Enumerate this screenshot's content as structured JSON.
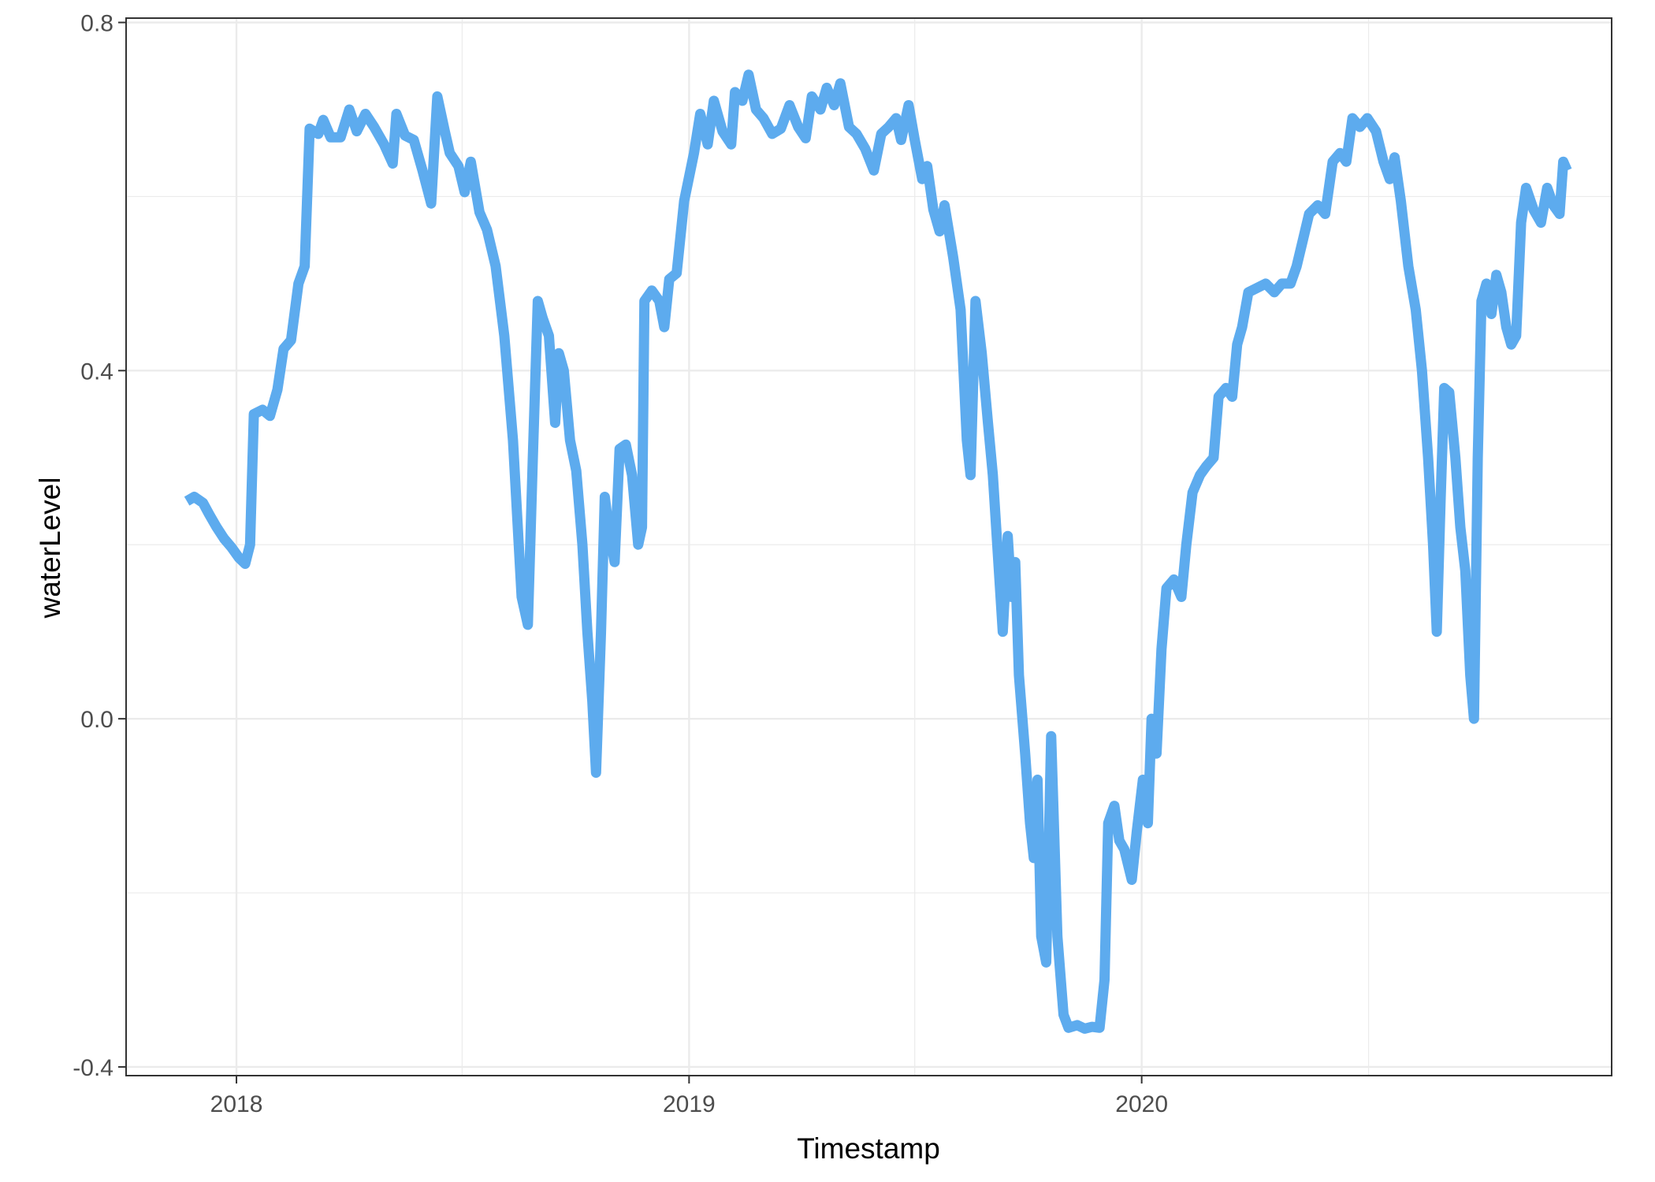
{
  "chart_data": {
    "type": "line",
    "title": "",
    "xlabel": "Timestamp",
    "ylabel": "waterLevel",
    "x_axis": {
      "type": "date",
      "range": [
        "2017-10-04",
        "2021-01-14"
      ],
      "ticks": [
        {
          "date": "2018-01-01",
          "label": "2018"
        },
        {
          "date": "2019-01-01",
          "label": "2019"
        },
        {
          "date": "2020-01-01",
          "label": "2020"
        }
      ],
      "minor_ticks": [
        "2018-07-02",
        "2019-07-02",
        "2020-07-02"
      ]
    },
    "y_axis": {
      "range": [
        -0.41,
        0.805
      ],
      "ticks": [
        {
          "value": -0.4,
          "label": "-0.4"
        },
        {
          "value": 0.0,
          "label": "0.0"
        },
        {
          "value": 0.4,
          "label": "0.4"
        },
        {
          "value": 0.8,
          "label": "0.8"
        }
      ],
      "minor_ticks": [
        -0.2,
        0.2,
        0.6
      ]
    },
    "grid": true,
    "legend": "none",
    "series": [
      {
        "color": "#5dabee",
        "points": [
          [
            "2017-11-22",
            0.25
          ],
          [
            "2017-11-28",
            0.255
          ],
          [
            "2017-12-05",
            0.248
          ],
          [
            "2017-12-10",
            0.235
          ],
          [
            "2017-12-16",
            0.22
          ],
          [
            "2017-12-22",
            0.207
          ],
          [
            "2017-12-28",
            0.197
          ],
          [
            "2018-01-03",
            0.185
          ],
          [
            "2018-01-08",
            0.178
          ],
          [
            "2018-01-12",
            0.2
          ],
          [
            "2018-01-15",
            0.35
          ],
          [
            "2018-01-22",
            0.355
          ],
          [
            "2018-01-28",
            0.348
          ],
          [
            "2018-02-03",
            0.378
          ],
          [
            "2018-02-08",
            0.425
          ],
          [
            "2018-02-14",
            0.435
          ],
          [
            "2018-02-20",
            0.5
          ],
          [
            "2018-02-25",
            0.52
          ],
          [
            "2018-03-01",
            0.678
          ],
          [
            "2018-03-08",
            0.672
          ],
          [
            "2018-03-12",
            0.688
          ],
          [
            "2018-03-18",
            0.668
          ],
          [
            "2018-03-26",
            0.668
          ],
          [
            "2018-04-02",
            0.7
          ],
          [
            "2018-04-08",
            0.675
          ],
          [
            "2018-04-15",
            0.695
          ],
          [
            "2018-04-22",
            0.68
          ],
          [
            "2018-04-30",
            0.66
          ],
          [
            "2018-05-07",
            0.638
          ],
          [
            "2018-05-10",
            0.695
          ],
          [
            "2018-05-17",
            0.67
          ],
          [
            "2018-05-24",
            0.665
          ],
          [
            "2018-05-31",
            0.63
          ],
          [
            "2018-06-07",
            0.592
          ],
          [
            "2018-06-12",
            0.715
          ],
          [
            "2018-06-18",
            0.675
          ],
          [
            "2018-06-22",
            0.65
          ],
          [
            "2018-06-29",
            0.635
          ],
          [
            "2018-07-04",
            0.605
          ],
          [
            "2018-07-09",
            0.64
          ],
          [
            "2018-07-16",
            0.582
          ],
          [
            "2018-07-22",
            0.562
          ],
          [
            "2018-07-29",
            0.52
          ],
          [
            "2018-08-05",
            0.44
          ],
          [
            "2018-08-12",
            0.32
          ],
          [
            "2018-08-19",
            0.14
          ],
          [
            "2018-08-24",
            0.108
          ],
          [
            "2018-08-28",
            0.3
          ],
          [
            "2018-09-01",
            0.48
          ],
          [
            "2018-09-05",
            0.46
          ],
          [
            "2018-09-10",
            0.44
          ],
          [
            "2018-09-15",
            0.34
          ],
          [
            "2018-09-18",
            0.42
          ],
          [
            "2018-09-22",
            0.4
          ],
          [
            "2018-09-27",
            0.32
          ],
          [
            "2018-10-02",
            0.285
          ],
          [
            "2018-10-07",
            0.2
          ],
          [
            "2018-10-11",
            0.1
          ],
          [
            "2018-10-15",
            0.02
          ],
          [
            "2018-10-18",
            -0.062
          ],
          [
            "2018-10-22",
            0.1
          ],
          [
            "2018-10-25",
            0.255
          ],
          [
            "2018-10-28",
            0.22
          ],
          [
            "2018-11-02",
            0.18
          ],
          [
            "2018-11-06",
            0.31
          ],
          [
            "2018-11-11",
            0.315
          ],
          [
            "2018-11-16",
            0.28
          ],
          [
            "2018-11-21",
            0.2
          ],
          [
            "2018-11-24",
            0.22
          ],
          [
            "2018-11-26",
            0.48
          ],
          [
            "2018-12-02",
            0.492
          ],
          [
            "2018-12-08",
            0.48
          ],
          [
            "2018-12-12",
            0.45
          ],
          [
            "2018-12-16",
            0.505
          ],
          [
            "2018-12-22",
            0.512
          ],
          [
            "2018-12-28",
            0.595
          ],
          [
            "2019-01-05",
            0.65
          ],
          [
            "2019-01-10",
            0.695
          ],
          [
            "2019-01-16",
            0.66
          ],
          [
            "2019-01-21",
            0.71
          ],
          [
            "2019-01-28",
            0.675
          ],
          [
            "2019-02-04",
            0.66
          ],
          [
            "2019-02-07",
            0.72
          ],
          [
            "2019-02-13",
            0.71
          ],
          [
            "2019-02-18",
            0.74
          ],
          [
            "2019-02-24",
            0.7
          ],
          [
            "2019-03-02",
            0.69
          ],
          [
            "2019-03-09",
            0.672
          ],
          [
            "2019-03-16",
            0.678
          ],
          [
            "2019-03-23",
            0.705
          ],
          [
            "2019-03-30",
            0.68
          ],
          [
            "2019-04-05",
            0.667
          ],
          [
            "2019-04-10",
            0.715
          ],
          [
            "2019-04-17",
            0.7
          ],
          [
            "2019-04-22",
            0.725
          ],
          [
            "2019-04-28",
            0.705
          ],
          [
            "2019-05-03",
            0.73
          ],
          [
            "2019-05-10",
            0.68
          ],
          [
            "2019-05-16",
            0.672
          ],
          [
            "2019-05-23",
            0.655
          ],
          [
            "2019-05-30",
            0.63
          ],
          [
            "2019-06-05",
            0.672
          ],
          [
            "2019-06-11",
            0.68
          ],
          [
            "2019-06-17",
            0.69
          ],
          [
            "2019-06-21",
            0.665
          ],
          [
            "2019-06-27",
            0.705
          ],
          [
            "2019-07-02",
            0.665
          ],
          [
            "2019-07-08",
            0.62
          ],
          [
            "2019-07-12",
            0.635
          ],
          [
            "2019-07-17",
            0.585
          ],
          [
            "2019-07-22",
            0.56
          ],
          [
            "2019-07-26",
            0.59
          ],
          [
            "2019-08-02",
            0.53
          ],
          [
            "2019-08-08",
            0.47
          ],
          [
            "2019-08-13",
            0.32
          ],
          [
            "2019-08-16",
            0.28
          ],
          [
            "2019-08-20",
            0.48
          ],
          [
            "2019-08-25",
            0.42
          ],
          [
            "2019-08-30",
            0.34
          ],
          [
            "2019-09-03",
            0.28
          ],
          [
            "2019-09-07",
            0.19
          ],
          [
            "2019-09-11",
            0.1
          ],
          [
            "2019-09-15",
            0.21
          ],
          [
            "2019-09-18",
            0.14
          ],
          [
            "2019-09-21",
            0.18
          ],
          [
            "2019-09-24",
            0.05
          ],
          [
            "2019-09-29",
            -0.04
          ],
          [
            "2019-10-03",
            -0.12
          ],
          [
            "2019-10-06",
            -0.16
          ],
          [
            "2019-10-09",
            -0.07
          ],
          [
            "2019-10-12",
            -0.25
          ],
          [
            "2019-10-16",
            -0.28
          ],
          [
            "2019-10-20",
            -0.02
          ],
          [
            "2019-10-25",
            -0.25
          ],
          [
            "2019-10-30",
            -0.34
          ],
          [
            "2019-11-03",
            -0.355
          ],
          [
            "2019-11-10",
            -0.352
          ],
          [
            "2019-11-16",
            -0.356
          ],
          [
            "2019-11-22",
            -0.354
          ],
          [
            "2019-11-28",
            -0.355
          ],
          [
            "2019-12-02",
            -0.3
          ],
          [
            "2019-12-05",
            -0.12
          ],
          [
            "2019-12-10",
            -0.1
          ],
          [
            "2019-12-14",
            -0.14
          ],
          [
            "2019-12-18",
            -0.15
          ],
          [
            "2019-12-24",
            -0.185
          ],
          [
            "2019-12-28",
            -0.13
          ],
          [
            "2020-01-02",
            -0.07
          ],
          [
            "2020-01-06",
            -0.12
          ],
          [
            "2020-01-09",
            0.0
          ],
          [
            "2020-01-13",
            -0.04
          ],
          [
            "2020-01-17",
            0.08
          ],
          [
            "2020-01-21",
            0.15
          ],
          [
            "2020-01-27",
            0.16
          ],
          [
            "2020-02-02",
            0.14
          ],
          [
            "2020-02-06",
            0.2
          ],
          [
            "2020-02-11",
            0.26
          ],
          [
            "2020-02-17",
            0.28
          ],
          [
            "2020-02-22",
            0.29
          ],
          [
            "2020-02-28",
            0.3
          ],
          [
            "2020-03-03",
            0.37
          ],
          [
            "2020-03-09",
            0.38
          ],
          [
            "2020-03-14",
            0.37
          ],
          [
            "2020-03-18",
            0.43
          ],
          [
            "2020-03-22",
            0.45
          ],
          [
            "2020-03-27",
            0.49
          ],
          [
            "2020-04-03",
            0.495
          ],
          [
            "2020-04-10",
            0.5
          ],
          [
            "2020-04-17",
            0.49
          ],
          [
            "2020-04-23",
            0.5
          ],
          [
            "2020-04-30",
            0.5
          ],
          [
            "2020-05-05",
            0.52
          ],
          [
            "2020-05-10",
            0.55
          ],
          [
            "2020-05-15",
            0.58
          ],
          [
            "2020-05-22",
            0.59
          ],
          [
            "2020-05-28",
            0.58
          ],
          [
            "2020-06-03",
            0.64
          ],
          [
            "2020-06-09",
            0.65
          ],
          [
            "2020-06-14",
            0.64
          ],
          [
            "2020-06-19",
            0.69
          ],
          [
            "2020-06-25",
            0.68
          ],
          [
            "2020-07-01",
            0.69
          ],
          [
            "2020-07-08",
            0.675
          ],
          [
            "2020-07-14",
            0.64
          ],
          [
            "2020-07-19",
            0.62
          ],
          [
            "2020-07-23",
            0.645
          ],
          [
            "2020-07-28",
            0.595
          ],
          [
            "2020-08-03",
            0.52
          ],
          [
            "2020-08-09",
            0.47
          ],
          [
            "2020-08-14",
            0.4
          ],
          [
            "2020-08-19",
            0.3
          ],
          [
            "2020-08-23",
            0.2
          ],
          [
            "2020-08-26",
            0.1
          ],
          [
            "2020-08-29",
            0.25
          ],
          [
            "2020-09-01",
            0.38
          ],
          [
            "2020-09-05",
            0.375
          ],
          [
            "2020-09-10",
            0.3
          ],
          [
            "2020-09-14",
            0.22
          ],
          [
            "2020-09-18",
            0.17
          ],
          [
            "2020-09-22",
            0.05
          ],
          [
            "2020-09-25",
            0.0
          ],
          [
            "2020-09-28",
            0.3
          ],
          [
            "2020-10-01",
            0.48
          ],
          [
            "2020-10-05",
            0.5
          ],
          [
            "2020-10-09",
            0.465
          ],
          [
            "2020-10-13",
            0.51
          ],
          [
            "2020-10-17",
            0.49
          ],
          [
            "2020-10-21",
            0.45
          ],
          [
            "2020-10-25",
            0.43
          ],
          [
            "2020-10-29",
            0.44
          ],
          [
            "2020-11-02",
            0.57
          ],
          [
            "2020-11-06",
            0.61
          ],
          [
            "2020-11-12",
            0.585
          ],
          [
            "2020-11-18",
            0.57
          ],
          [
            "2020-11-23",
            0.61
          ],
          [
            "2020-11-28",
            0.59
          ],
          [
            "2020-12-03",
            0.58
          ],
          [
            "2020-12-06",
            0.64
          ],
          [
            "2020-12-09",
            0.63
          ]
        ]
      }
    ]
  }
}
